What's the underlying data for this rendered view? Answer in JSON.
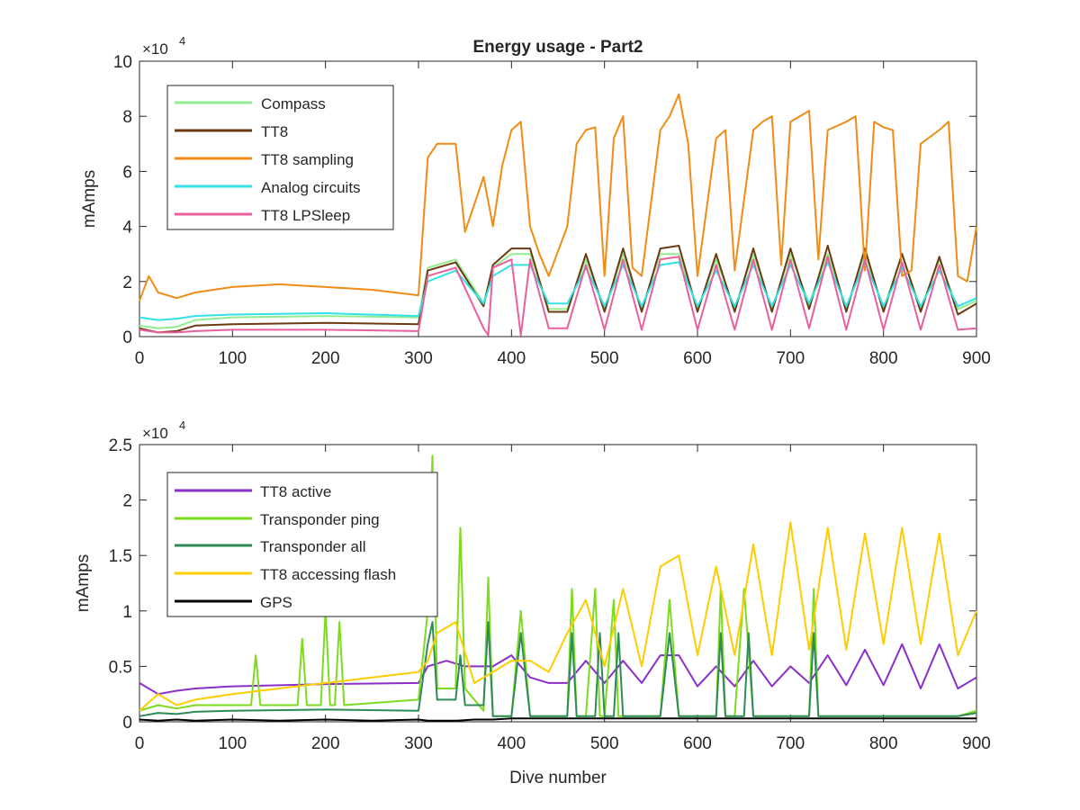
{
  "figure": {
    "title": "Energy usage - Part2",
    "xlabel": "Dive number"
  },
  "chart_data": [
    {
      "type": "line",
      "title": "Energy usage - Part2",
      "xlabel": "",
      "ylabel": "mAmps",
      "y_exponent_label": "×10",
      "y_exponent_power": "4",
      "xlim": [
        0,
        900
      ],
      "ylim": [
        0,
        100000
      ],
      "xticks": [
        0,
        100,
        200,
        300,
        400,
        500,
        600,
        700,
        800,
        900
      ],
      "yticks": [
        0,
        20000,
        40000,
        60000,
        80000,
        100000
      ],
      "ytick_labels": [
        "0",
        "2",
        "4",
        "6",
        "8",
        "10"
      ],
      "grid": false,
      "legend_position": "top-left",
      "series": [
        {
          "name": "Compass",
          "color": "#90ee90",
          "x": [
            0,
            20,
            40,
            60,
            100,
            200,
            300,
            310,
            340,
            370,
            380,
            400,
            420,
            440,
            460,
            480,
            500,
            520,
            540,
            560,
            580,
            600,
            620,
            640,
            660,
            680,
            700,
            720,
            740,
            760,
            780,
            800,
            820,
            840,
            860,
            880,
            900
          ],
          "y": [
            4000,
            3000,
            3500,
            6000,
            7000,
            7500,
            7000,
            25000,
            28000,
            12000,
            25000,
            30000,
            30000,
            10000,
            10000,
            28000,
            10000,
            30000,
            10000,
            30000,
            30000,
            10000,
            28000,
            10000,
            30000,
            10000,
            30000,
            12000,
            30000,
            10000,
            30000,
            10000,
            30000,
            10000,
            28000,
            10000,
            13000
          ]
        },
        {
          "name": "TT8",
          "color": "#6b3a10",
          "x": [
            0,
            20,
            40,
            60,
            100,
            200,
            300,
            310,
            340,
            370,
            380,
            400,
            420,
            440,
            460,
            480,
            500,
            520,
            540,
            560,
            580,
            600,
            620,
            640,
            660,
            680,
            700,
            720,
            740,
            760,
            780,
            800,
            820,
            840,
            860,
            880,
            900
          ],
          "y": [
            3000,
            1500,
            2000,
            4000,
            4500,
            5000,
            4500,
            24000,
            27000,
            11000,
            26000,
            32000,
            32000,
            9000,
            9000,
            30000,
            9000,
            32000,
            9000,
            32000,
            33000,
            9000,
            30000,
            9000,
            32000,
            9000,
            32000,
            10000,
            33000,
            9000,
            32000,
            9000,
            30000,
            9000,
            29000,
            8000,
            12000
          ]
        },
        {
          "name": "TT8 sampling",
          "color": "#f08c16",
          "x": [
            0,
            10,
            20,
            40,
            60,
            100,
            150,
            200,
            250,
            300,
            310,
            320,
            340,
            350,
            370,
            380,
            390,
            400,
            410,
            420,
            430,
            440,
            460,
            470,
            480,
            490,
            500,
            510,
            520,
            530,
            540,
            560,
            570,
            580,
            590,
            600,
            620,
            630,
            640,
            660,
            670,
            680,
            690,
            700,
            710,
            720,
            730,
            740,
            760,
            770,
            780,
            790,
            800,
            810,
            820,
            830,
            840,
            860,
            870,
            880,
            890,
            900
          ],
          "y": [
            13000,
            22000,
            16000,
            14000,
            16000,
            18000,
            19000,
            18000,
            17000,
            15000,
            65000,
            70000,
            70000,
            38000,
            58000,
            40000,
            62000,
            75000,
            78000,
            40000,
            30000,
            22000,
            40000,
            70000,
            75000,
            76000,
            22000,
            72000,
            80000,
            25000,
            22000,
            75000,
            80000,
            88000,
            70000,
            22000,
            72000,
            75000,
            24000,
            75000,
            78000,
            80000,
            26000,
            78000,
            80000,
            82000,
            28000,
            75000,
            78000,
            80000,
            24000,
            78000,
            76000,
            75000,
            22000,
            24000,
            70000,
            75000,
            78000,
            22000,
            20000,
            40000
          ]
        },
        {
          "name": "Analog circuits",
          "color": "#33e1e6",
          "x": [
            0,
            20,
            40,
            60,
            100,
            200,
            300,
            310,
            340,
            370,
            380,
            400,
            420,
            440,
            460,
            480,
            500,
            520,
            540,
            560,
            580,
            600,
            620,
            640,
            660,
            680,
            700,
            720,
            740,
            760,
            780,
            800,
            820,
            840,
            860,
            880,
            900
          ],
          "y": [
            7000,
            6000,
            6500,
            7500,
            8000,
            8500,
            7500,
            20000,
            24000,
            12000,
            22000,
            26000,
            26000,
            12000,
            12000,
            25000,
            11000,
            26000,
            11000,
            26000,
            27000,
            11000,
            24000,
            11000,
            26000,
            11000,
            26000,
            12000,
            27000,
            11000,
            27000,
            11000,
            25000,
            11000,
            24000,
            11000,
            14000
          ]
        },
        {
          "name": "TT8 LPSleep",
          "color": "#e8609e",
          "x": [
            0,
            20,
            40,
            60,
            100,
            200,
            300,
            310,
            340,
            370,
            375,
            380,
            400,
            410,
            420,
            440,
            460,
            480,
            500,
            520,
            540,
            560,
            580,
            600,
            620,
            640,
            660,
            680,
            700,
            720,
            740,
            760,
            780,
            800,
            820,
            840,
            860,
            880,
            900
          ],
          "y": [
            2500,
            1500,
            1500,
            2000,
            2500,
            2500,
            2000,
            22000,
            25000,
            3000,
            500,
            25000,
            28000,
            500,
            28000,
            3000,
            3000,
            26000,
            2500,
            28000,
            2500,
            28000,
            29000,
            2500,
            26000,
            2500,
            28000,
            2500,
            28000,
            3000,
            29000,
            2500,
            28000,
            2500,
            27000,
            2500,
            26000,
            2500,
            3000
          ]
        }
      ]
    },
    {
      "type": "line",
      "title": "",
      "xlabel": "Dive number",
      "ylabel": "mAmps",
      "y_exponent_label": "×10",
      "y_exponent_power": "4",
      "xlim": [
        0,
        900
      ],
      "ylim": [
        0,
        25000
      ],
      "xticks": [
        0,
        100,
        200,
        300,
        400,
        500,
        600,
        700,
        800,
        900
      ],
      "yticks": [
        0,
        5000,
        10000,
        15000,
        20000,
        25000
      ],
      "ytick_labels": [
        "0",
        "0.5",
        "1",
        "1.5",
        "2",
        "2.5"
      ],
      "grid": false,
      "legend_position": "top-left",
      "series": [
        {
          "name": "TT8 active",
          "color": "#8b2fc9",
          "x": [
            0,
            20,
            40,
            60,
            100,
            200,
            300,
            310,
            330,
            350,
            380,
            400,
            420,
            440,
            460,
            480,
            500,
            520,
            540,
            560,
            580,
            600,
            620,
            640,
            660,
            680,
            700,
            720,
            740,
            760,
            780,
            800,
            820,
            840,
            860,
            880,
            900
          ],
          "y": [
            3500,
            2500,
            2800,
            3000,
            3200,
            3400,
            3500,
            5000,
            5500,
            5000,
            5000,
            6000,
            4000,
            3500,
            3500,
            5500,
            3500,
            5500,
            3500,
            6000,
            6000,
            3200,
            5000,
            3200,
            5500,
            3200,
            5000,
            3500,
            6000,
            3300,
            6500,
            3300,
            7000,
            3000,
            7000,
            3000,
            4000
          ]
        },
        {
          "name": "Transponder ping",
          "color": "#7ddb1e",
          "x": [
            0,
            20,
            40,
            60,
            100,
            120,
            125,
            130,
            150,
            170,
            175,
            180,
            195,
            200,
            205,
            210,
            215,
            220,
            300,
            310,
            315,
            320,
            330,
            340,
            345,
            350,
            370,
            375,
            380,
            400,
            410,
            420,
            440,
            460,
            465,
            470,
            480,
            490,
            495,
            500,
            510,
            515,
            520,
            540,
            560,
            570,
            580,
            600,
            620,
            625,
            630,
            640,
            650,
            660,
            680,
            700,
            720,
            725,
            730,
            740,
            760,
            780,
            800,
            820,
            840,
            860,
            880,
            900
          ],
          "y": [
            1000,
            1500,
            1200,
            1500,
            1500,
            1500,
            6000,
            1500,
            1500,
            1500,
            7500,
            1500,
            1500,
            10000,
            1500,
            1500,
            9000,
            1500,
            2000,
            10000,
            24000,
            3000,
            3000,
            3000,
            17500,
            3000,
            1000,
            13000,
            500,
            500,
            10000,
            500,
            500,
            500,
            12000,
            500,
            500,
            12000,
            500,
            500,
            11000,
            500,
            500,
            500,
            500,
            11000,
            500,
            500,
            500,
            12000,
            500,
            500,
            12000,
            500,
            500,
            500,
            500,
            12000,
            500,
            500,
            500,
            500,
            500,
            500,
            500,
            500,
            500,
            1000
          ]
        },
        {
          "name": "Transponder all",
          "color": "#2e8b57",
          "x": [
            0,
            20,
            40,
            60,
            100,
            200,
            300,
            310,
            315,
            320,
            340,
            345,
            350,
            370,
            375,
            380,
            400,
            410,
            420,
            460,
            465,
            470,
            490,
            495,
            500,
            510,
            515,
            520,
            560,
            570,
            580,
            620,
            625,
            630,
            650,
            655,
            660,
            720,
            725,
            730,
            760,
            780,
            800,
            820,
            840,
            860,
            880,
            900
          ],
          "y": [
            500,
            800,
            700,
            900,
            1000,
            1100,
            1000,
            7000,
            9000,
            2000,
            2000,
            6000,
            1500,
            1500,
            9000,
            500,
            500,
            8000,
            500,
            500,
            8000,
            500,
            500,
            8000,
            500,
            500,
            8000,
            500,
            500,
            8000,
            500,
            500,
            8000,
            500,
            500,
            8000,
            500,
            500,
            8000,
            500,
            500,
            500,
            500,
            500,
            500,
            500,
            500,
            800
          ]
        },
        {
          "name": "TT8 accessing flash",
          "color": "#ffcc00",
          "x": [
            0,
            20,
            40,
            60,
            100,
            150,
            200,
            250,
            300,
            310,
            320,
            340,
            360,
            380,
            400,
            420,
            440,
            460,
            480,
            500,
            520,
            540,
            560,
            580,
            600,
            620,
            640,
            660,
            680,
            700,
            720,
            740,
            760,
            780,
            800,
            820,
            840,
            860,
            880,
            900
          ],
          "y": [
            1000,
            2500,
            1500,
            2000,
            2500,
            3000,
            3500,
            4000,
            4500,
            5500,
            8000,
            9000,
            3500,
            4500,
            5500,
            5500,
            4500,
            8000,
            11000,
            5000,
            12000,
            5000,
            14000,
            15000,
            6000,
            14000,
            6000,
            16000,
            6000,
            18000,
            6500,
            17500,
            6500,
            17000,
            7000,
            17500,
            7000,
            17000,
            6000,
            10000
          ]
        },
        {
          "name": "GPS",
          "color": "#000000",
          "x": [
            0,
            20,
            40,
            60,
            100,
            150,
            200,
            250,
            300,
            310,
            320,
            340,
            360,
            380,
            400,
            450,
            500,
            550,
            600,
            650,
            700,
            750,
            800,
            850,
            900
          ],
          "y": [
            200,
            100,
            200,
            100,
            200,
            100,
            200,
            100,
            200,
            100,
            100,
            100,
            200,
            200,
            300,
            300,
            300,
            300,
            300,
            300,
            300,
            300,
            300,
            300,
            300
          ]
        }
      ]
    }
  ]
}
